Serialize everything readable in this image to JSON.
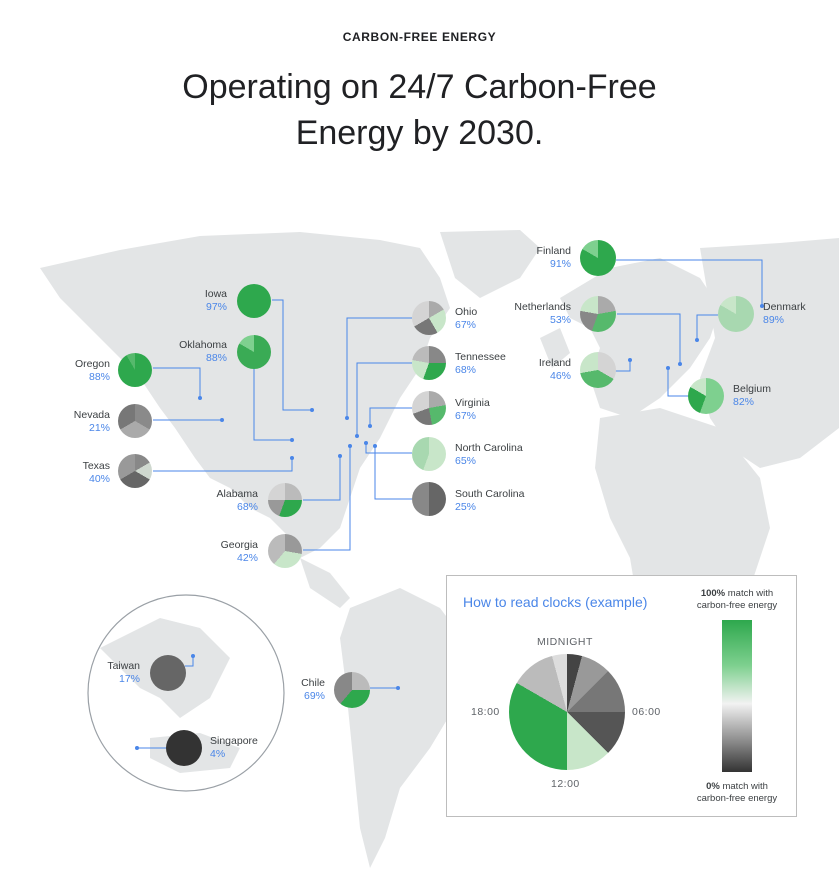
{
  "header": {
    "eyebrow": "CARBON-FREE ENERGY",
    "title_line1": "Operating on 24/7 Carbon-Free",
    "title_line2": "Energy by 2030."
  },
  "sites": [
    {
      "name": "Iowa",
      "pct": "97%"
    },
    {
      "name": "Oklahoma",
      "pct": "88%"
    },
    {
      "name": "Oregon",
      "pct": "88%"
    },
    {
      "name": "Nevada",
      "pct": "21%"
    },
    {
      "name": "Texas",
      "pct": "40%"
    },
    {
      "name": "Alabama",
      "pct": "68%"
    },
    {
      "name": "Georgia",
      "pct": "42%"
    },
    {
      "name": "Ohio",
      "pct": "67%"
    },
    {
      "name": "Tennessee",
      "pct": "68%"
    },
    {
      "name": "Virginia",
      "pct": "67%"
    },
    {
      "name": "North Carolina",
      "pct": "65%"
    },
    {
      "name": "South Carolina",
      "pct": "25%"
    },
    {
      "name": "Finland",
      "pct": "91%"
    },
    {
      "name": "Netherlands",
      "pct": "53%"
    },
    {
      "name": "Denmark",
      "pct": "89%"
    },
    {
      "name": "Ireland",
      "pct": "46%"
    },
    {
      "name": "Belgium",
      "pct": "82%"
    },
    {
      "name": "Chile",
      "pct": "69%"
    },
    {
      "name": "Taiwan",
      "pct": "17%"
    },
    {
      "name": "Singapore",
      "pct": "4%"
    }
  ],
  "legend": {
    "title": "How to read clocks (example)",
    "midnight": "MIDNIGHT",
    "six_am": "06:00",
    "noon": "12:00",
    "six_pm": "18:00",
    "top_bold": "100%",
    "top_rest": " match with",
    "top_line2": "carbon-free energy",
    "bottom_bold": "0%",
    "bottom_rest": " match with",
    "bottom_line2": "carbon-free energy"
  },
  "colors": {
    "high": "#2ea84d",
    "low": "#333333",
    "label_pct": "#4a86e8",
    "land": "#e3e5e6"
  }
}
